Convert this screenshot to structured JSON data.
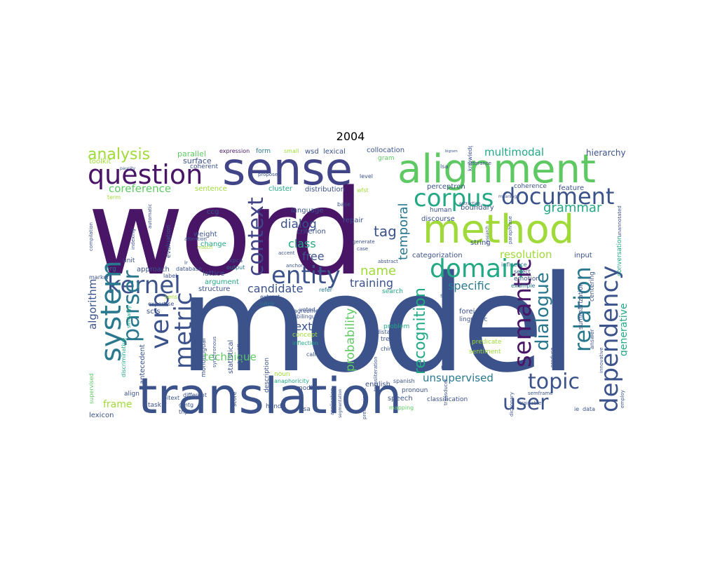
{
  "title": "2004",
  "palette": {
    "dark_purple": "#481567",
    "indigo": "#3b528b",
    "slate_blue": "#414487",
    "teal": "#21908d",
    "sea_green": "#2a788e",
    "green": "#22a884",
    "light_green": "#5ec962",
    "yellow_green": "#a0da39",
    "yellow": "#fde725"
  },
  "words": [
    {
      "text": "word",
      "color": "#481567"
    },
    {
      "text": "model",
      "color": "#3b528b"
    },
    {
      "text": "sense",
      "color": "#414487"
    },
    {
      "text": "alignment",
      "color": "#5ec962"
    },
    {
      "text": "method",
      "color": "#a0da39"
    },
    {
      "text": "translation",
      "color": "#3b528b"
    },
    {
      "text": "question",
      "color": "#481567"
    },
    {
      "text": "corpus",
      "color": "#22a884"
    },
    {
      "text": "document",
      "color": "#3b528b"
    },
    {
      "text": "domain",
      "color": "#22a884"
    },
    {
      "text": "kernel",
      "color": "#3b528b"
    },
    {
      "text": "entity",
      "color": "#3b528b"
    },
    {
      "text": "context",
      "color": "#414487"
    },
    {
      "text": "system",
      "color": "#2a788e"
    },
    {
      "text": "parser",
      "color": "#2a788e"
    },
    {
      "text": "verb",
      "color": "#3b528b"
    },
    {
      "text": "metric",
      "color": "#3b528b"
    },
    {
      "text": "semantic",
      "color": "#481567"
    },
    {
      "text": "relation",
      "color": "#2a788e"
    },
    {
      "text": "dependency",
      "color": "#3b528b"
    },
    {
      "text": "dialogue",
      "color": "#2a788e"
    },
    {
      "text": "topic",
      "color": "#3b528b"
    },
    {
      "text": "user",
      "color": "#3b528b"
    },
    {
      "text": "analysis",
      "color": "#a0da39"
    },
    {
      "text": "coreference",
      "color": "#5ec962"
    },
    {
      "text": "grammar",
      "color": "#22a884"
    },
    {
      "text": "multimodal",
      "color": "#22a884"
    },
    {
      "text": "tag",
      "color": "#3b528b"
    },
    {
      "text": "temporal",
      "color": "#2a788e"
    },
    {
      "text": "recognition",
      "color": "#22a884"
    },
    {
      "text": "probability",
      "color": "#5ec962"
    },
    {
      "text": "name",
      "color": "#a0da39"
    },
    {
      "text": "training",
      "color": "#3b528b"
    },
    {
      "text": "specific",
      "color": "#2a788e"
    },
    {
      "text": "candidate",
      "color": "#3b528b"
    },
    {
      "text": "dialog",
      "color": "#3b528b"
    },
    {
      "text": "class",
      "color": "#22a884"
    },
    {
      "text": "free",
      "color": "#3b528b"
    },
    {
      "text": "text",
      "color": "#3b528b"
    },
    {
      "text": "technique",
      "color": "#5ec962"
    },
    {
      "text": "unsupervised",
      "color": "#2a788e"
    },
    {
      "text": "resolution",
      "color": "#a0da39"
    },
    {
      "text": "algorithm",
      "color": "#3b528b"
    },
    {
      "text": "generative",
      "color": "#22a884"
    },
    {
      "text": "frame",
      "color": "#a0da39"
    },
    {
      "text": "hierarchy",
      "color": "#3b528b"
    },
    {
      "text": "parallel",
      "color": "#5ec962"
    },
    {
      "text": "surface",
      "color": "#3b528b"
    },
    {
      "text": "expression",
      "color": "#481567"
    },
    {
      "text": "form",
      "color": "#2a788e"
    },
    {
      "text": "small",
      "color": "#a0da39"
    },
    {
      "text": "wsd",
      "color": "#3b528b"
    },
    {
      "text": "lexical",
      "color": "#3b528b"
    },
    {
      "text": "collocation",
      "color": "#3b528b"
    },
    {
      "text": "gram",
      "color": "#5ec962"
    },
    {
      "text": "level",
      "color": "#3b528b"
    },
    {
      "text": "propose",
      "color": "#3b528b"
    },
    {
      "text": "cluster",
      "color": "#22a884"
    },
    {
      "text": "distribution",
      "color": "#3b528b"
    },
    {
      "text": "perceptron",
      "color": "#3b528b"
    },
    {
      "text": "coherence",
      "color": "#3b528b"
    },
    {
      "text": "feature",
      "color": "#3b528b"
    },
    {
      "text": "sentence",
      "color": "#a0da39"
    },
    {
      "text": "toolkit",
      "color": "#a0da39"
    },
    {
      "text": "coherent",
      "color": "#3b528b"
    },
    {
      "text": "ccg",
      "color": "#3b528b"
    },
    {
      "text": "language",
      "color": "#3b528b"
    },
    {
      "text": "repair",
      "color": "#3b528b"
    },
    {
      "text": "criterion",
      "color": "#3b528b"
    },
    {
      "text": "human",
      "color": "#3b528b"
    },
    {
      "text": "boundary",
      "color": "#3b528b"
    },
    {
      "text": "discourse",
      "color": "#3b528b"
    },
    {
      "text": "weight",
      "color": "#3b528b"
    },
    {
      "text": "change",
      "color": "#22a884"
    },
    {
      "text": "lattice",
      "color": "#3b528b"
    },
    {
      "text": "argument",
      "color": "#22a884"
    },
    {
      "text": "evaluation",
      "color": "#3b528b"
    },
    {
      "text": "conversation",
      "color": "#22a884"
    },
    {
      "text": "string",
      "color": "#3b528b"
    },
    {
      "text": "categorization",
      "color": "#3b528b"
    },
    {
      "text": "input",
      "color": "#3b528b"
    },
    {
      "text": "influence",
      "color": "#2a788e"
    },
    {
      "text": "select",
      "color": "#3b528b"
    },
    {
      "text": "emotion",
      "color": "#3b528b"
    },
    {
      "text": "example",
      "color": "#2a788e"
    },
    {
      "text": "approach",
      "color": "#3b528b"
    },
    {
      "text": "structure",
      "color": "#3b528b"
    },
    {
      "text": "unit",
      "color": "#3b528b"
    },
    {
      "text": "erg",
      "color": "#2a788e"
    },
    {
      "text": "database",
      "color": "#3b528b"
    },
    {
      "text": "label",
      "color": "#3b528b"
    },
    {
      "text": "kpca",
      "color": "#3b528b"
    },
    {
      "text": "output",
      "color": "#2a788e"
    },
    {
      "text": "refer",
      "color": "#2a788e"
    },
    {
      "text": "search",
      "color": "#22a884"
    },
    {
      "text": "extract",
      "color": "#3b528b"
    },
    {
      "text": "pitch",
      "color": "#2a788e"
    },
    {
      "text": "sens",
      "color": "#a0da39"
    },
    {
      "text": "expertise",
      "color": "#3b528b"
    },
    {
      "text": "scfs",
      "color": "#3b528b"
    },
    {
      "text": "centering",
      "color": "#3b528b"
    },
    {
      "text": "summarization",
      "color": "#3b528b"
    },
    {
      "text": "linguistic",
      "color": "#3b528b"
    },
    {
      "text": "foreign",
      "color": "#3b528b"
    },
    {
      "text": "voted",
      "color": "#3b528b"
    },
    {
      "text": "bilingual",
      "color": "#3b528b"
    },
    {
      "text": "problem",
      "color": "#22a884"
    },
    {
      "text": "concept",
      "color": "#a0da39"
    },
    {
      "text": "inflection",
      "color": "#22a884"
    },
    {
      "text": "call",
      "color": "#3b528b"
    },
    {
      "text": "distance",
      "color": "#3b528b"
    },
    {
      "text": "tree",
      "color": "#3b528b"
    },
    {
      "text": "chinese",
      "color": "#3b528b"
    },
    {
      "text": "predicate",
      "color": "#a0da39"
    },
    {
      "text": "sentiment",
      "color": "#a0da39"
    },
    {
      "text": "answer",
      "color": "#3b528b"
    },
    {
      "text": "rate",
      "color": "#3b528b"
    },
    {
      "text": "semframe",
      "color": "#3b528b"
    },
    {
      "text": "classification",
      "color": "#3b528b"
    },
    {
      "text": "trainable",
      "color": "#3b528b"
    },
    {
      "text": "align",
      "color": "#3b528b"
    },
    {
      "text": "task",
      "color": "#3b528b"
    },
    {
      "text": "gmtg",
      "color": "#3b528b"
    },
    {
      "text": "triple",
      "color": "#3b528b"
    },
    {
      "text": "bitext",
      "color": "#3b528b"
    },
    {
      "text": "different",
      "color": "#3b528b"
    },
    {
      "text": "monolingual",
      "color": "#3b528b"
    },
    {
      "text": "statistical",
      "color": "#3b528b"
    },
    {
      "text": "classifier",
      "color": "#3b528b"
    },
    {
      "text": "description",
      "color": "#3b528b"
    },
    {
      "text": "synchronous",
      "color": "#3b528b"
    },
    {
      "text": "noun",
      "color": "#a0da39"
    },
    {
      "text": "anaphoricity",
      "color": "#22a884"
    },
    {
      "text": "modifier",
      "color": "#3b528b"
    },
    {
      "text": "agreement",
      "color": "#3b528b"
    },
    {
      "text": "english",
      "color": "#3b528b"
    },
    {
      "text": "speech",
      "color": "#3b528b"
    },
    {
      "text": "spanish",
      "color": "#3b528b"
    },
    {
      "text": "mapping",
      "color": "#5ec962"
    },
    {
      "text": "hand",
      "color": "#3b528b"
    },
    {
      "text": "flsa",
      "color": "#3b528b"
    },
    {
      "text": "score",
      "color": "#3b528b"
    },
    {
      "text": "lexicon",
      "color": "#3b528b"
    },
    {
      "text": "supervised",
      "color": "#5ec962"
    },
    {
      "text": "discriminative",
      "color": "#22a884"
    },
    {
      "text": "antecedent",
      "color": "#3b528b"
    },
    {
      "text": "marker",
      "color": "#3b528b"
    },
    {
      "text": "indexing",
      "color": "#3b528b"
    },
    {
      "text": "compilation",
      "color": "#3b528b"
    },
    {
      "text": "automatic",
      "color": "#3b528b"
    },
    {
      "text": "attention",
      "color": "#3b528b"
    },
    {
      "text": "match",
      "color": "#a0da39"
    },
    {
      "text": "paraphrase",
      "color": "#3b528b"
    },
    {
      "text": "meaning",
      "color": "#3b528b"
    },
    {
      "text": "extraction",
      "color": "#3b528b"
    },
    {
      "text": "research",
      "color": "#3b528b"
    },
    {
      "text": "lsa",
      "color": "#3b528b"
    },
    {
      "text": "knowledge",
      "color": "#3b528b"
    },
    {
      "text": "skip",
      "color": "#3b528b"
    },
    {
      "text": "produce",
      "color": "#3b528b"
    },
    {
      "text": "disagreement",
      "color": "#3b528b"
    },
    {
      "text": "innovative",
      "color": "#3b528b"
    },
    {
      "text": "employ",
      "color": "#3b528b"
    },
    {
      "text": "dictionary",
      "color": "#3b528b"
    },
    {
      "text": "transducer",
      "color": "#3b528b"
    },
    {
      "text": "ie",
      "color": "#3b528b"
    },
    {
      "text": "data",
      "color": "#3b528b"
    },
    {
      "text": "unannotated",
      "color": "#3b528b"
    },
    {
      "text": "base",
      "color": "#3b528b"
    },
    {
      "text": "wfst",
      "color": "#a0da39"
    },
    {
      "text": "case",
      "color": "#3b528b"
    },
    {
      "text": "generate",
      "color": "#3b528b"
    },
    {
      "text": "accent",
      "color": "#3b528b"
    },
    {
      "text": "abstract",
      "color": "#3b528b"
    },
    {
      "text": "anchor",
      "color": "#3b528b"
    },
    {
      "text": "term",
      "color": "#a0da39"
    },
    {
      "text": "lr",
      "color": "#3b528b"
    },
    {
      "text": "application",
      "color": "#3b528b"
    },
    {
      "text": "segmentation",
      "color": "#3b528b"
    },
    {
      "text": "predominant",
      "color": "#3b528b"
    },
    {
      "text": "transliteration",
      "color": "#3b528b"
    },
    {
      "text": "pronoun",
      "color": "#3b528b"
    },
    {
      "text": "utterance",
      "color": "#3b528b"
    },
    {
      "text": "bigram",
      "color": "#3b528b"
    },
    {
      "text": "similarity",
      "color": "#22a884"
    },
    {
      "text": "paucity",
      "color": "#3b528b"
    }
  ]
}
